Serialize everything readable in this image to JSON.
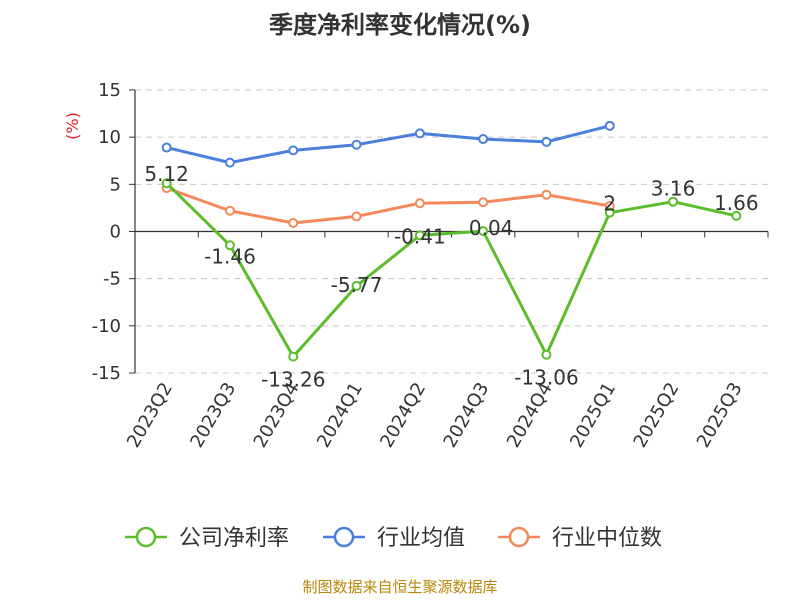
{
  "chart_data": {
    "type": "line",
    "title": "季度净利率变化情况(%)",
    "ylabel": "(%)",
    "xlabel": "",
    "ylim": [
      -15,
      15
    ],
    "yticks": [
      15,
      10,
      5,
      0,
      -5,
      -10,
      -15
    ],
    "categories": [
      "2023Q2",
      "2023Q3",
      "2023Q4",
      "2024Q1",
      "2024Q2",
      "2024Q3",
      "2024Q4",
      "2025Q1",
      "2025Q2",
      "2025Q3"
    ],
    "grid": true,
    "legend_position": "bottom",
    "series": [
      {
        "name": "公司净利率",
        "color": "#5bbd2b",
        "values": [
          5.12,
          -1.46,
          -13.26,
          -5.77,
          -0.41,
          0.04,
          -13.06,
          2,
          3.16,
          1.66
        ],
        "labels": [
          "5.12",
          "-1.46",
          "-13.26",
          "-5.77",
          "-0.41",
          "0.04",
          "-13.06",
          "2",
          "3.16",
          "1.66"
        ]
      },
      {
        "name": "行业均值",
        "color": "#4a7fdc",
        "values": [
          8.9,
          7.3,
          8.6,
          9.2,
          10.4,
          9.8,
          9.5,
          11.2,
          null,
          null
        ]
      },
      {
        "name": "行业中位数",
        "color": "#f4885a",
        "values": [
          4.6,
          2.2,
          0.9,
          1.6,
          3.0,
          3.1,
          3.9,
          2.7,
          null,
          null
        ]
      }
    ]
  },
  "source": "制图数据来自恒生聚源数据库"
}
